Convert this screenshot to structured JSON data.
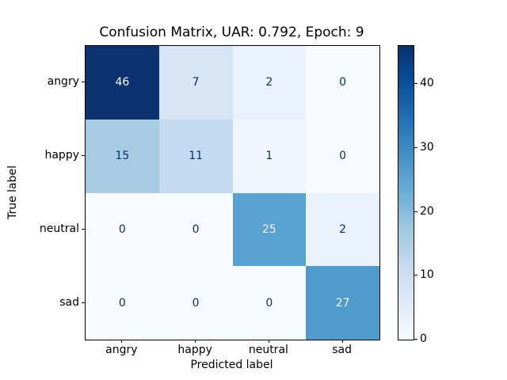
{
  "figure": {
    "title": "Confusion Matrix, UAR: 0.792, Epoch: 9",
    "xlabel": "Predicted label",
    "ylabel": "True label"
  },
  "chart_data": {
    "type": "heatmap",
    "title": "Confusion Matrix, UAR: 0.792, Epoch: 9",
    "xlabel": "Predicted label",
    "ylabel": "True label",
    "x_categories": [
      "angry",
      "happy",
      "neutral",
      "sad"
    ],
    "y_categories": [
      "angry",
      "happy",
      "neutral",
      "sad"
    ],
    "matrix": [
      [
        46,
        7,
        2,
        0
      ],
      [
        15,
        11,
        1,
        0
      ],
      [
        0,
        0,
        25,
        2
      ],
      [
        0,
        0,
        0,
        27
      ]
    ],
    "vmin": 0,
    "vmax": 46,
    "colormap": "Blues",
    "cell_colors": [
      [
        "#0d3270",
        "#d7e5f4",
        "#e9f1fa",
        "#f7fbff"
      ],
      [
        "#a6cbe3",
        "#c4daee",
        "#f0f6fd",
        "#f7fbff"
      ],
      [
        "#f7fbff",
        "#f7fbff",
        "#5aa2d0",
        "#e9f1fa"
      ],
      [
        "#f7fbff",
        "#f7fbff",
        "#f7fbff",
        "#4f9bcb"
      ]
    ],
    "text_color_dark": "#08306b",
    "text_color_light": "#f7fbff",
    "colorbar": {
      "ticks": [
        0,
        10,
        20,
        30,
        40
      ],
      "gradient_stops": [
        {
          "pos": 0.0,
          "color": "#f7fbff"
        },
        {
          "pos": 0.125,
          "color": "#deebf7"
        },
        {
          "pos": 0.25,
          "color": "#c6dbef"
        },
        {
          "pos": 0.375,
          "color": "#9ecae1"
        },
        {
          "pos": 0.5,
          "color": "#6baed6"
        },
        {
          "pos": 0.625,
          "color": "#4292c6"
        },
        {
          "pos": 0.75,
          "color": "#2171b5"
        },
        {
          "pos": 0.875,
          "color": "#08519c"
        },
        {
          "pos": 1.0,
          "color": "#08306b"
        }
      ]
    }
  }
}
